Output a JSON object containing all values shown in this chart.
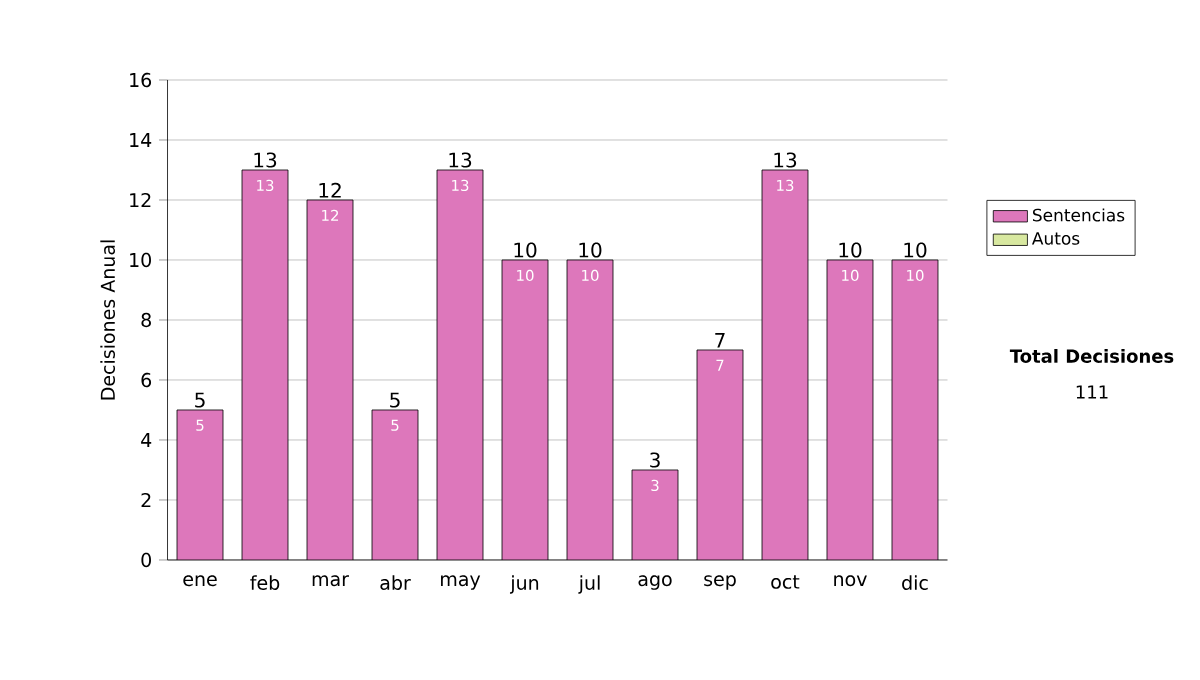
{
  "chart_data": {
    "type": "bar",
    "stacked": true,
    "ylabel": "Decisiones Anual",
    "categories": [
      "ene",
      "feb",
      "mar",
      "abr",
      "may",
      "jun",
      "jul",
      "ago",
      "sep",
      "oct",
      "nov",
      "dic"
    ],
    "series": [
      {
        "name": "Sentencias",
        "color": "#dd77bb",
        "values": [
          5,
          13,
          12,
          5,
          13,
          10,
          10,
          3,
          7,
          13,
          10,
          10
        ],
        "value_labels": [
          "5",
          "13",
          "12",
          "5",
          "13",
          "10",
          "10",
          "3",
          "7",
          "13",
          "10",
          "10"
        ]
      },
      {
        "name": "Autos",
        "color": "#d8e8a0",
        "values": [
          0,
          0,
          0,
          0,
          0,
          0,
          0,
          0,
          0,
          0,
          0,
          0
        ]
      }
    ],
    "totals": [
      "5",
      "13",
      "12",
      "5",
      "13",
      "10",
      "10",
      "3",
      "7",
      "13",
      "10",
      "10"
    ],
    "ylim": [
      0,
      16
    ],
    "yticks": [
      0,
      2,
      4,
      6,
      8,
      10,
      12,
      14,
      16
    ],
    "grid": "y",
    "legend": "right",
    "annotations": [
      "Total Decisiones",
      "111"
    ]
  }
}
